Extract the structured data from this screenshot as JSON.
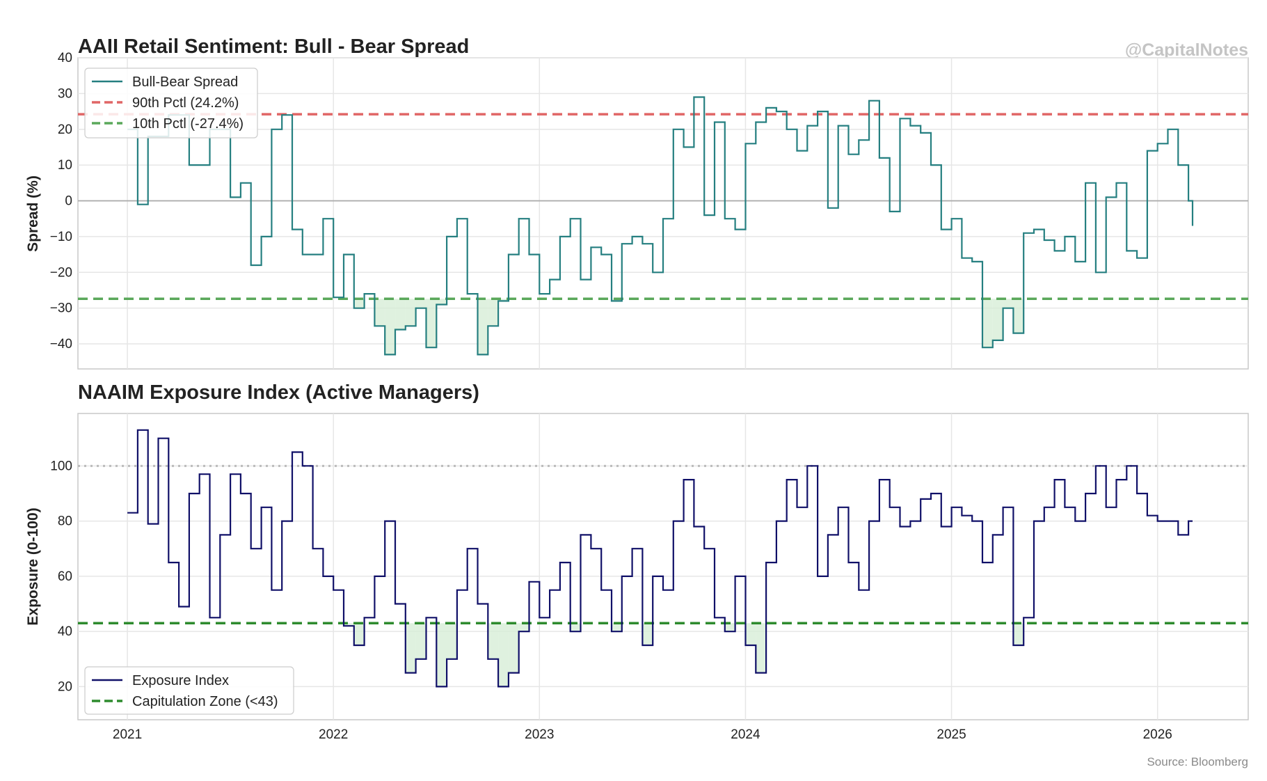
{
  "watermark": "@CapitalNotes",
  "source": "Source: Bloomberg",
  "colors": {
    "spread_line": "#257f80",
    "exposure_line": "#101068",
    "pct90": "#e06666",
    "pct10": "#5aa85a",
    "capitulation": "#2e8b2e",
    "zero_line": "#aaaaaa",
    "threshold_100": "#bbbbbb",
    "fill_green": "#d4ecd4",
    "grid": "#e6e6e6"
  },
  "chart_data": [
    {
      "type": "line",
      "title": "AAII Retail Sentiment: Bull - Bear Spread",
      "ylabel": "Spread (%)",
      "xlabel": "",
      "xlim": [
        2020.76,
        2026.44
      ],
      "ylim": [
        -47,
        40
      ],
      "yticks": [
        40,
        30,
        20,
        10,
        0,
        -10,
        -20,
        -30,
        -40
      ],
      "ytick_labels": [
        "40",
        "30",
        "20",
        "10",
        "0",
        "−10",
        "−20",
        "−30",
        "−40"
      ],
      "xticks": [
        2021,
        2022,
        2023,
        2024,
        2025,
        2026
      ],
      "grid": true,
      "legend_position": "top-left",
      "series": [
        {
          "name": "Bull-Bear Spread",
          "style": "step",
          "x": [
            2021.0,
            2021.05,
            2021.1,
            2021.2,
            2021.3,
            2021.4,
            2021.5,
            2021.55,
            2021.6,
            2021.65,
            2021.7,
            2021.75,
            2021.8,
            2021.85,
            2021.9,
            2021.95,
            2022.0,
            2022.05,
            2022.1,
            2022.15,
            2022.2,
            2022.25,
            2022.3,
            2022.35,
            2022.4,
            2022.45,
            2022.5,
            2022.55,
            2022.6,
            2022.65,
            2022.7,
            2022.75,
            2022.8,
            2022.85,
            2022.9,
            2022.95,
            2023.0,
            2023.05,
            2023.1,
            2023.15,
            2023.2,
            2023.25,
            2023.3,
            2023.35,
            2023.4,
            2023.45,
            2023.5,
            2023.55,
            2023.6,
            2023.65,
            2023.7,
            2023.75,
            2023.8,
            2023.85,
            2023.9,
            2023.95,
            2024.0,
            2024.05,
            2024.1,
            2024.15,
            2024.2,
            2024.25,
            2024.3,
            2024.35,
            2024.4,
            2024.45,
            2024.5,
            2024.55,
            2024.6,
            2024.65,
            2024.7,
            2024.75,
            2024.8,
            2024.85,
            2024.9,
            2024.95,
            2025.0,
            2025.05,
            2025.1,
            2025.15,
            2025.2,
            2025.25,
            2025.3,
            2025.35,
            2025.4,
            2025.45,
            2025.5,
            2025.55,
            2025.6,
            2025.65,
            2025.7,
            2025.75,
            2025.8,
            2025.85,
            2025.9,
            2025.95,
            2026.0,
            2026.05,
            2026.1,
            2026.15,
            2026.17
          ],
          "y": [
            20,
            -1,
            18,
            24,
            10,
            20,
            1,
            5,
            -18,
            -10,
            20,
            24,
            -8,
            -15,
            -15,
            -5,
            -27,
            -15,
            -30,
            -26,
            -35,
            -43,
            -36,
            -35,
            -30,
            -41,
            -29,
            -10,
            -5,
            -26,
            -43,
            -35,
            -28,
            -15,
            -5,
            -15,
            -26,
            -22,
            -10,
            -5,
            -22,
            -13,
            -15,
            -28,
            -12,
            -10,
            -12,
            -20,
            -5,
            20,
            15,
            29,
            -4,
            22,
            -5,
            -8,
            16,
            22,
            26,
            25,
            20,
            14,
            21,
            25,
            -2,
            21,
            13,
            17,
            28,
            12,
            -3,
            23,
            21,
            19,
            10,
            -8,
            -5,
            -16,
            -17,
            -41,
            -39,
            -30,
            -37,
            -9,
            -8,
            -11,
            -14,
            -10,
            -17,
            5,
            -20,
            1,
            5,
            -14,
            -16,
            14,
            16,
            20,
            10,
            0,
            -7
          ]
        },
        {
          "name": "90th Pctl (24.2%)",
          "value": 24.2,
          "style": "dashed"
        },
        {
          "name": "10th Pctl (-27.4%)",
          "value": -27.4,
          "style": "dashed"
        }
      ]
    },
    {
      "type": "line",
      "title": "NAAIM Exposure Index (Active Managers)",
      "ylabel": "Exposure (0-100)",
      "xlabel": "",
      "xlim": [
        2020.76,
        2026.44
      ],
      "ylim": [
        8,
        119
      ],
      "yticks": [
        100,
        80,
        60,
        40,
        20
      ],
      "ytick_labels": [
        "100",
        "80",
        "60",
        "40",
        "20"
      ],
      "xticks": [
        2021,
        2022,
        2023,
        2024,
        2025,
        2026
      ],
      "xtick_labels": [
        "2021",
        "2022",
        "2023",
        "2024",
        "2025",
        "2026"
      ],
      "grid": true,
      "legend_position": "bottom-left",
      "series": [
        {
          "name": "Exposure Index",
          "style": "step",
          "x": [
            2021.0,
            2021.05,
            2021.1,
            2021.15,
            2021.2,
            2021.25,
            2021.3,
            2021.35,
            2021.4,
            2021.45,
            2021.5,
            2021.55,
            2021.6,
            2021.65,
            2021.7,
            2021.75,
            2021.8,
            2021.85,
            2021.9,
            2021.95,
            2022.0,
            2022.05,
            2022.1,
            2022.15,
            2022.2,
            2022.25,
            2022.3,
            2022.35,
            2022.4,
            2022.45,
            2022.5,
            2022.55,
            2022.6,
            2022.65,
            2022.7,
            2022.75,
            2022.8,
            2022.85,
            2022.9,
            2022.95,
            2023.0,
            2023.05,
            2023.1,
            2023.15,
            2023.2,
            2023.25,
            2023.3,
            2023.35,
            2023.4,
            2023.45,
            2023.5,
            2023.55,
            2023.6,
            2023.65,
            2023.7,
            2023.75,
            2023.8,
            2023.85,
            2023.9,
            2023.95,
            2024.0,
            2024.05,
            2024.1,
            2024.15,
            2024.2,
            2024.25,
            2024.3,
            2024.35,
            2024.4,
            2024.45,
            2024.5,
            2024.55,
            2024.6,
            2024.65,
            2024.7,
            2024.75,
            2024.8,
            2024.85,
            2024.9,
            2024.95,
            2025.0,
            2025.05,
            2025.1,
            2025.15,
            2025.2,
            2025.25,
            2025.3,
            2025.35,
            2025.4,
            2025.45,
            2025.5,
            2025.55,
            2025.6,
            2025.65,
            2025.7,
            2025.75,
            2025.8,
            2025.85,
            2025.9,
            2025.95,
            2026.0,
            2026.05,
            2026.1,
            2026.15,
            2026.17
          ],
          "y": [
            83,
            113,
            79,
            110,
            65,
            49,
            90,
            97,
            45,
            75,
            97,
            90,
            70,
            85,
            55,
            80,
            105,
            100,
            70,
            60,
            55,
            42,
            35,
            45,
            60,
            80,
            50,
            25,
            30,
            45,
            20,
            30,
            55,
            70,
            50,
            30,
            20,
            25,
            40,
            58,
            45,
            55,
            65,
            40,
            75,
            70,
            55,
            40,
            60,
            70,
            35,
            60,
            55,
            80,
            95,
            78,
            70,
            45,
            40,
            60,
            35,
            25,
            65,
            80,
            95,
            85,
            100,
            60,
            75,
            85,
            65,
            55,
            80,
            95,
            85,
            78,
            80,
            88,
            90,
            78,
            85,
            82,
            80,
            65,
            75,
            85,
            35,
            45,
            80,
            85,
            95,
            85,
            80,
            90,
            100,
            85,
            95,
            100,
            90,
            82,
            80,
            80,
            75,
            80,
            80
          ]
        },
        {
          "name": "Capitulation Zone (<43)",
          "value": 43,
          "style": "dashed"
        },
        {
          "name": "",
          "value": 100,
          "style": "dotted"
        }
      ]
    }
  ]
}
